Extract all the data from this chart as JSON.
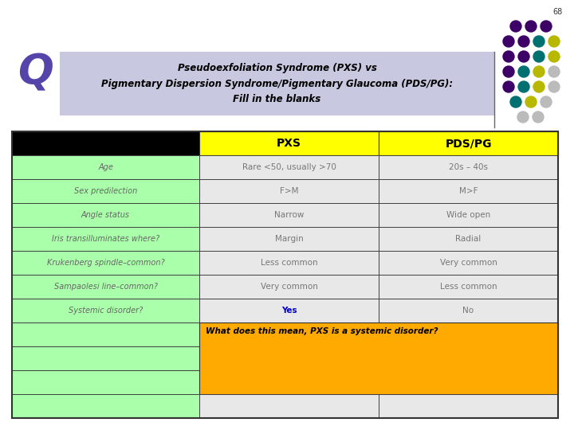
{
  "slide_number": "68",
  "q_letter": "Q",
  "title_line1": "Pseudoexfoliation Syndrome (PXS) vs",
  "title_line2": "Pigmentary Dispersion Syndrome/Pigmentary Glaucoma (PDS/PG):",
  "title_line3": "Fill in the blanks",
  "title_bg": "#c8c8e0",
  "table_header_col2": "PXS",
  "table_header_col3": "PDS/PG",
  "header_bg": "#ffff00",
  "row_label_bg": "#aaffaa",
  "row_data_bg": "#e8e8e8",
  "rows": [
    [
      "Age",
      "Rare <50, usually >70",
      "20s – 40s"
    ],
    [
      "Sex predilection",
      "F>M",
      "M>F"
    ],
    [
      "Angle status",
      "Narrow",
      "Wide open"
    ],
    [
      "Iris transilluminates where?",
      "Margin",
      "Radial"
    ],
    [
      "Krukenberg spindle–common?",
      "Less common",
      "Very common"
    ],
    [
      "Sampaolesi line–common?",
      "Very common",
      "Less common"
    ],
    [
      "Systemic disorder?",
      "Yes",
      "No"
    ]
  ],
  "systemic_yes_color": "#0000cc",
  "annotation_text": "What does this mean, PXS is a systemic disorder?",
  "annotation_bg": "#ffaa00",
  "dot_grid": [
    [
      "#3d0066",
      "#3d0066",
      "#3d0066"
    ],
    [
      "#3d0066",
      "#3d0066",
      "#007070",
      "#b8b800"
    ],
    [
      "#3d0066",
      "#3d0066",
      "#007070",
      "#b8b800"
    ],
    [
      "#3d0066",
      "#007070",
      "#b8b800",
      "#bbbbbb"
    ],
    [
      "#3d0066",
      "#007070",
      "#b8b800",
      "#bbbbbb"
    ],
    [
      "#007070",
      "#b8b800",
      "#bbbbbb"
    ],
    [
      "#bbbbbb",
      "#bbbbbb"
    ]
  ]
}
